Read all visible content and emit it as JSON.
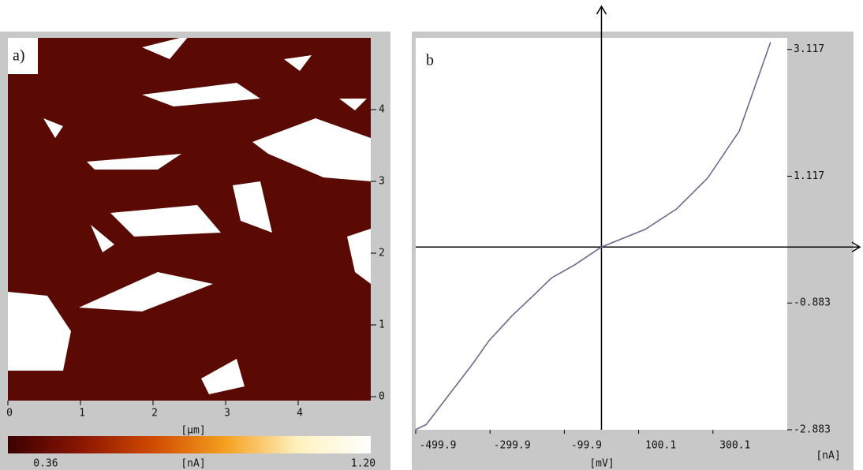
{
  "chart_data": [
    {
      "type": "heatmap",
      "panel_label": "a)",
      "xlabel": "[μm]",
      "xlim": [
        0,
        5
      ],
      "ylim": [
        0,
        5
      ],
      "xticks": [
        0,
        1,
        2,
        3,
        4
      ],
      "yticks": [
        0,
        1,
        2,
        3,
        4
      ],
      "background": "#5a0a02",
      "colorbar": {
        "label": "[nA]",
        "clim": [
          0.26,
          1.22
        ],
        "ticks": [
          0.36,
          {
            "value": 1.2,
            "label": "1.20"
          }
        ],
        "colors": [
          "#3c0000",
          "#8a1500",
          "#d04a00",
          "#f5a020",
          "#fff2c0",
          "#ffffff"
        ]
      }
    },
    {
      "type": "line",
      "panel_label": "b",
      "xlabel": "[mV]",
      "ylabel": "[nA]",
      "xlim": [
        -499.9,
        500.1
      ],
      "ylim": [
        -2.883,
        3.3
      ],
      "xticks": [
        -499.9,
        -299.9,
        -99.9,
        100.1,
        300.1
      ],
      "yticks": [
        -2.883,
        -0.883,
        1.117,
        3.117
      ],
      "x": [
        -499.9,
        -471.6,
        -345,
        -303,
        -240,
        -177,
        -135,
        -72,
        0,
        118,
        202,
        286,
        371,
        455
      ],
      "series": [
        {
          "color": "#6a6a90",
          "values": [
            -2.88,
            -2.8,
            -1.83,
            -1.48,
            -1.08,
            -0.73,
            -0.49,
            -0.28,
            0,
            0.28,
            0.6,
            1.09,
            1.83,
            3.23
          ]
        }
      ]
    }
  ]
}
